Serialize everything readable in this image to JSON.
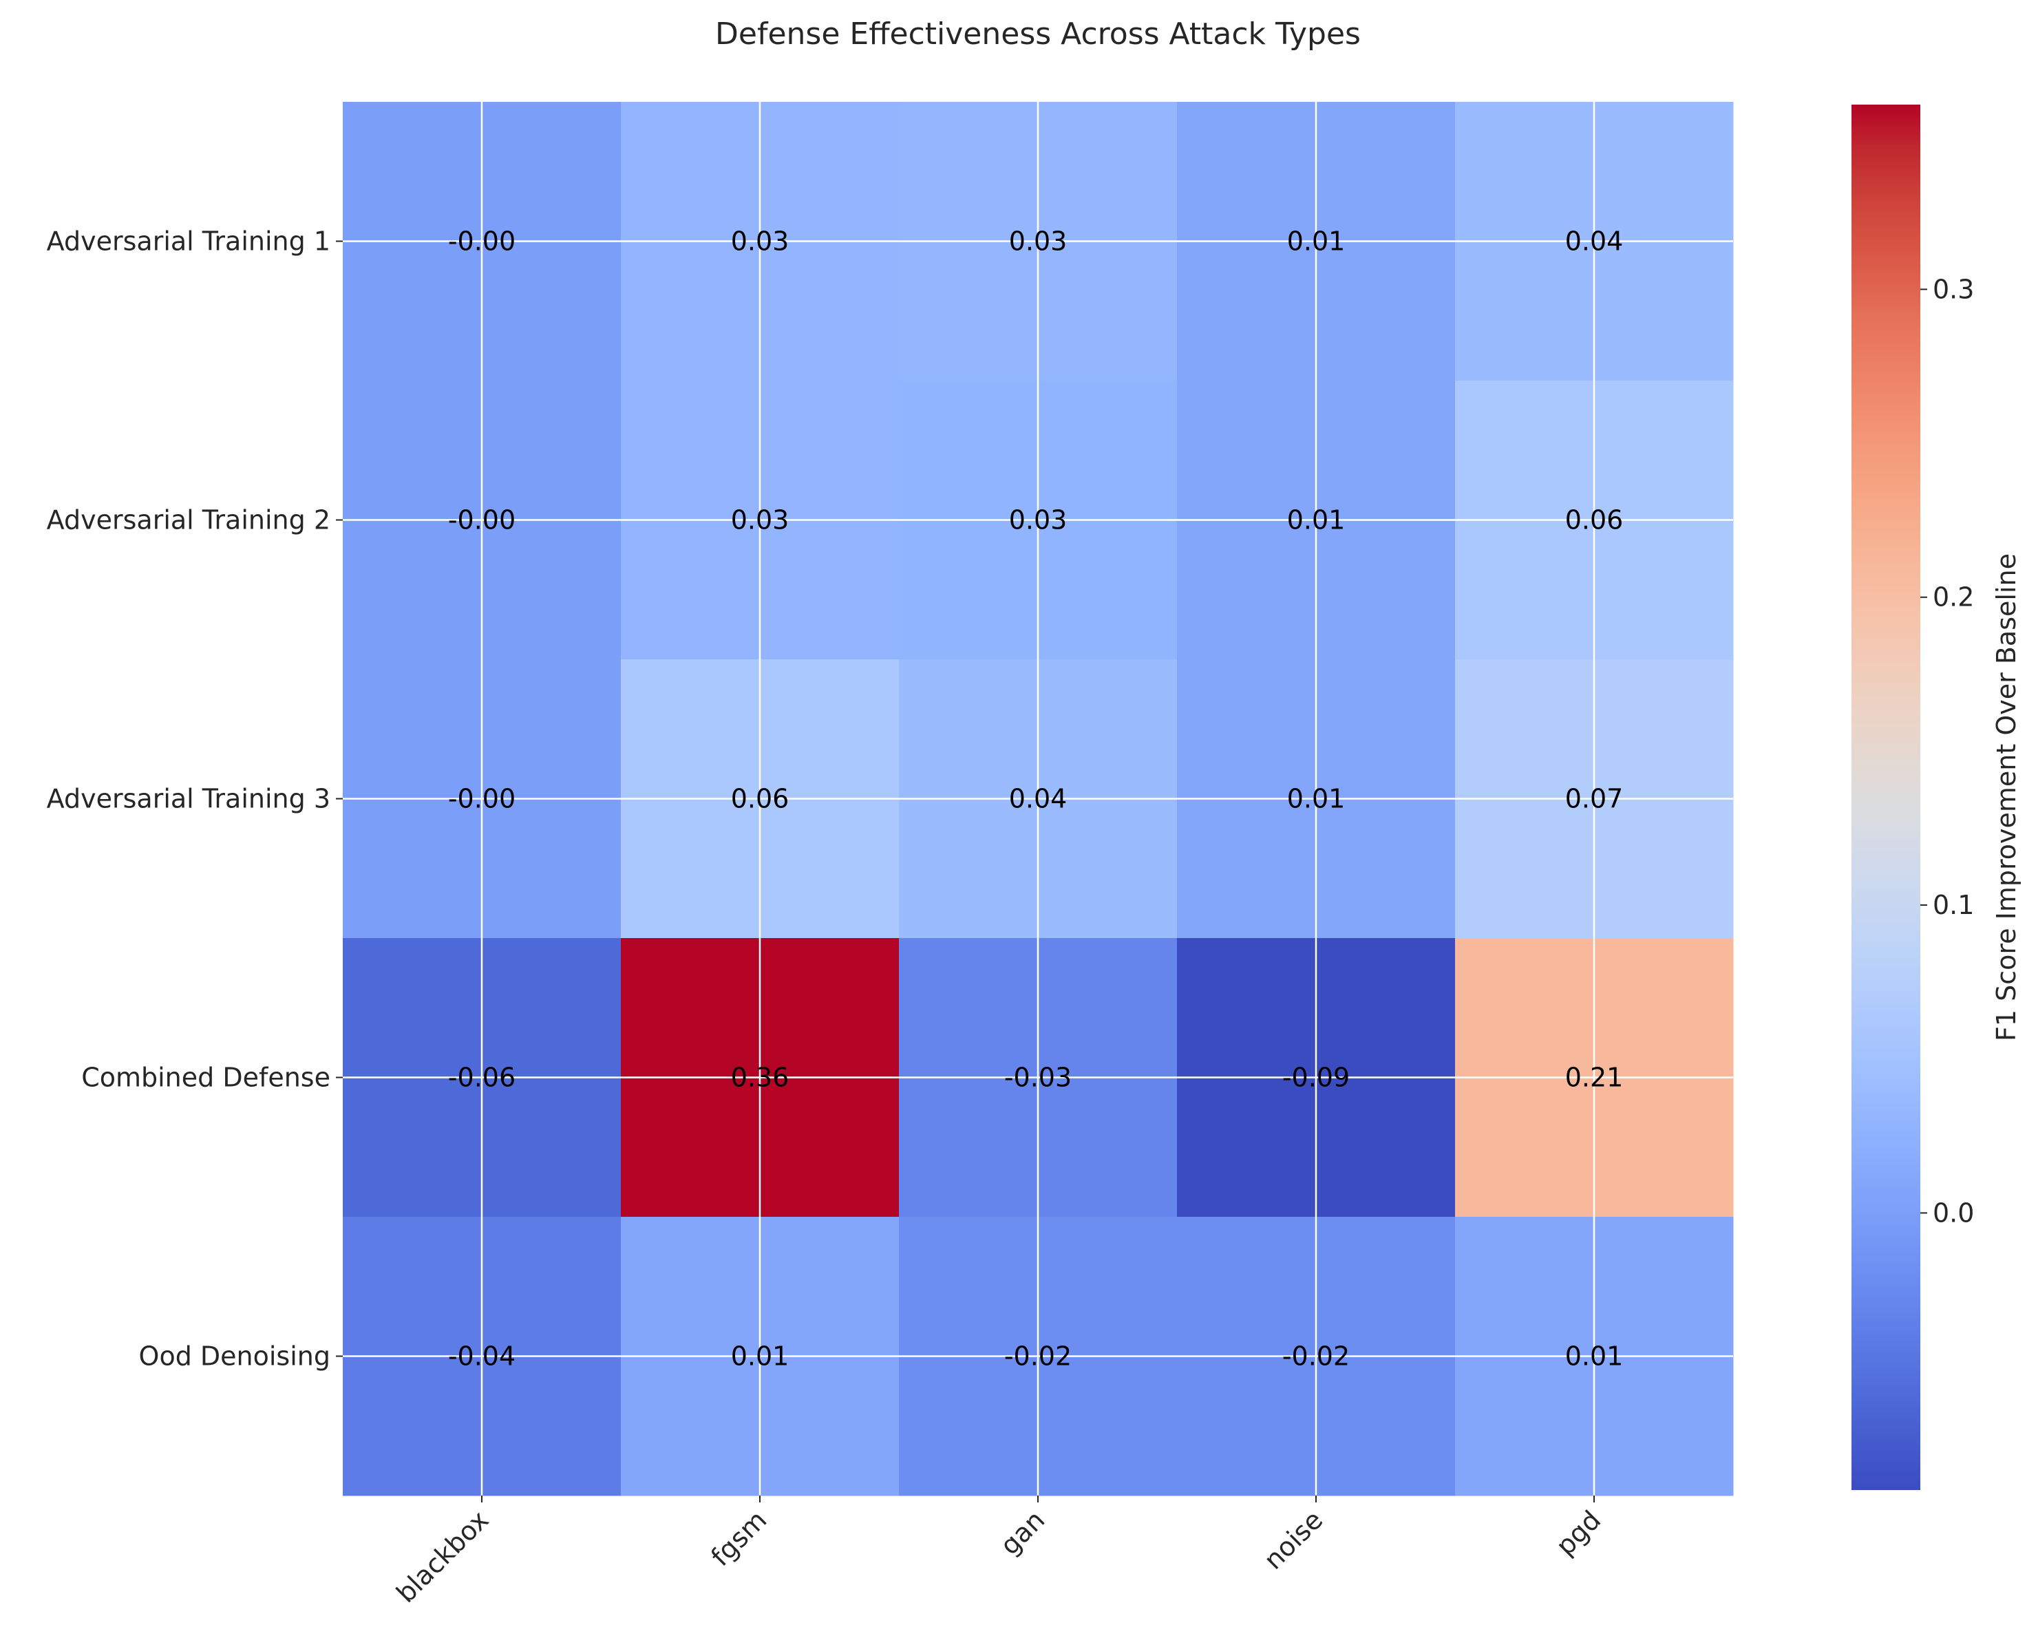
{
  "chart_data": {
    "type": "heatmap",
    "title": "Defense Effectiveness Across Attack Types",
    "rows": [
      "Adversarial Training 1",
      "Adversarial Training 2",
      "Adversarial Training 3",
      "Combined Defense",
      "Ood Denoising"
    ],
    "columns": [
      "blackbox",
      "fgsm",
      "gan",
      "noise",
      "pgd"
    ],
    "values": [
      [
        -0.001,
        0.03,
        0.032,
        0.01,
        0.04
      ],
      [
        -0.001,
        0.03,
        0.028,
        0.01,
        0.06
      ],
      [
        -0.001,
        0.06,
        0.04,
        0.01,
        0.07
      ],
      [
        -0.06,
        0.36,
        -0.03,
        -0.09,
        0.21
      ],
      [
        -0.04,
        0.01,
        -0.02,
        -0.02,
        0.01
      ]
    ],
    "cell_labels": [
      [
        "-0.00",
        "0.03",
        "0.03",
        "0.01",
        "0.04"
      ],
      [
        "-0.00",
        "0.03",
        "0.03",
        "0.01",
        "0.06"
      ],
      [
        "-0.00",
        "0.06",
        "0.04",
        "0.01",
        "0.07"
      ],
      [
        "-0.06",
        "0.36",
        "-0.03",
        "-0.09",
        "0.21"
      ],
      [
        "-0.04",
        "0.01",
        "-0.02",
        "-0.02",
        "0.01"
      ]
    ],
    "colormap": "coolwarm",
    "vmin": -0.09,
    "vmax": 0.36,
    "colorbar": {
      "label": "F1 Score Improvement Over Baseline",
      "ticks": [
        0.0,
        0.1,
        0.2,
        0.3
      ],
      "tick_labels": [
        "0.0",
        "0.1",
        "0.2",
        "0.3"
      ]
    },
    "grid": true,
    "grid_color": "#ffffff",
    "x_tick_rotation_deg": 45
  }
}
